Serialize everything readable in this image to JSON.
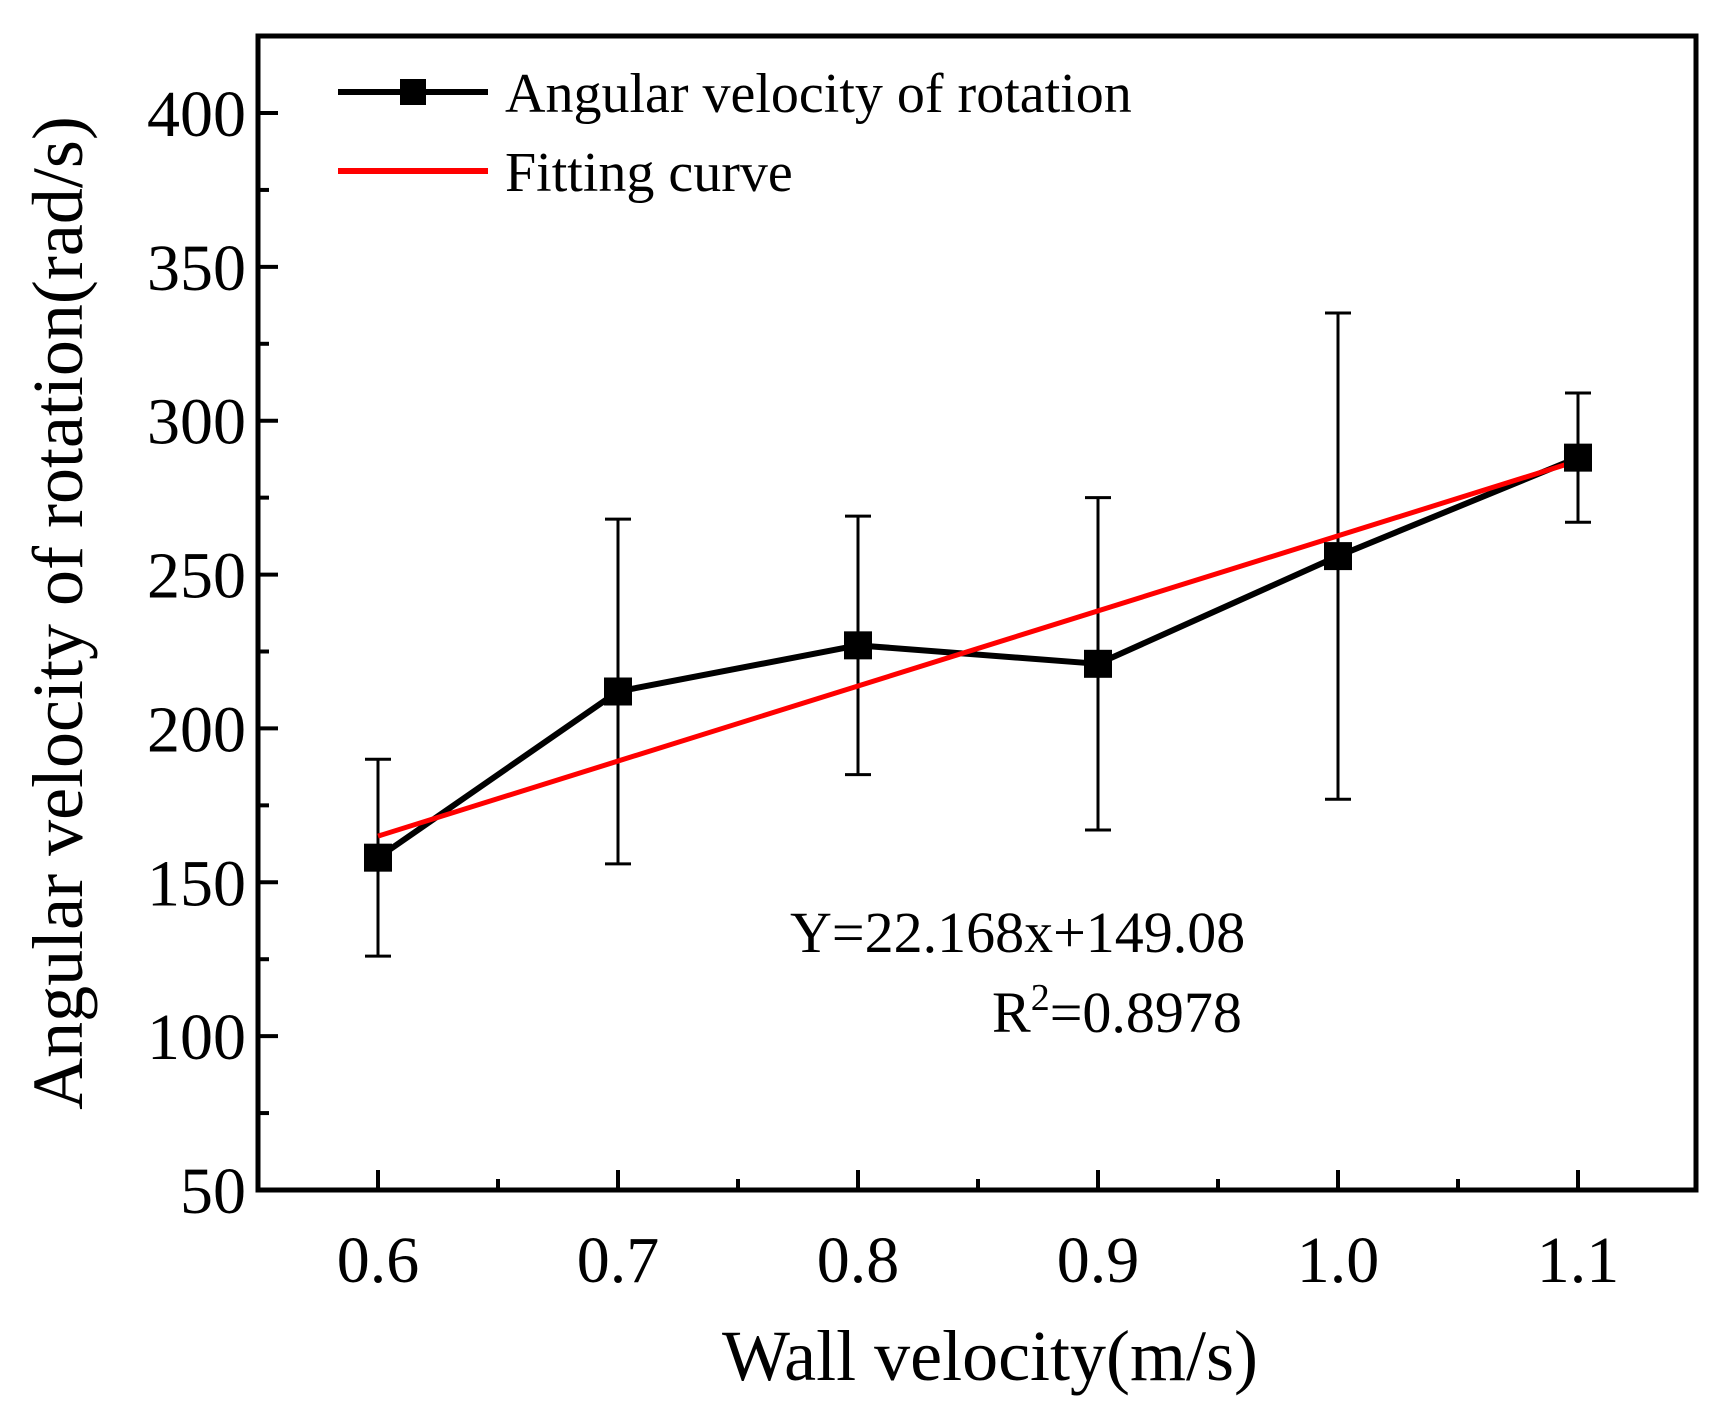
{
  "chart_data": {
    "type": "line",
    "title": "",
    "xlabel": "Wall velocity(m/s)",
    "ylabel": "Angular velocity of rotation(rad/s)",
    "xlim": [
      0.55,
      1.15
    ],
    "ylim": [
      50,
      425
    ],
    "x_ticks": [
      "0.6",
      "0.7",
      "0.8",
      "0.9",
      "1.0",
      "1.1"
    ],
    "y_ticks": [
      "50",
      "100",
      "150",
      "200",
      "250",
      "300",
      "350",
      "400"
    ],
    "legend_position": "top-left",
    "series": [
      {
        "name": "Angular velocity of rotation",
        "color": "#000000",
        "marker": "square",
        "x": [
          0.6,
          0.7,
          0.8,
          0.9,
          1.0,
          1.1
        ],
        "y": [
          158,
          212,
          227,
          221,
          256,
          288
        ],
        "error": [
          32,
          56,
          42,
          54,
          79,
          21
        ]
      },
      {
        "name": "Fitting curve",
        "color": "#ff0000",
        "x": [
          0.6,
          1.1
        ],
        "y": [
          165,
          287
        ]
      }
    ],
    "annotations": {
      "equation": "Y=22.168x+149.08",
      "r2_prefix": "R",
      "r2_sup": "2",
      "r2_value": "=0.8978"
    }
  }
}
